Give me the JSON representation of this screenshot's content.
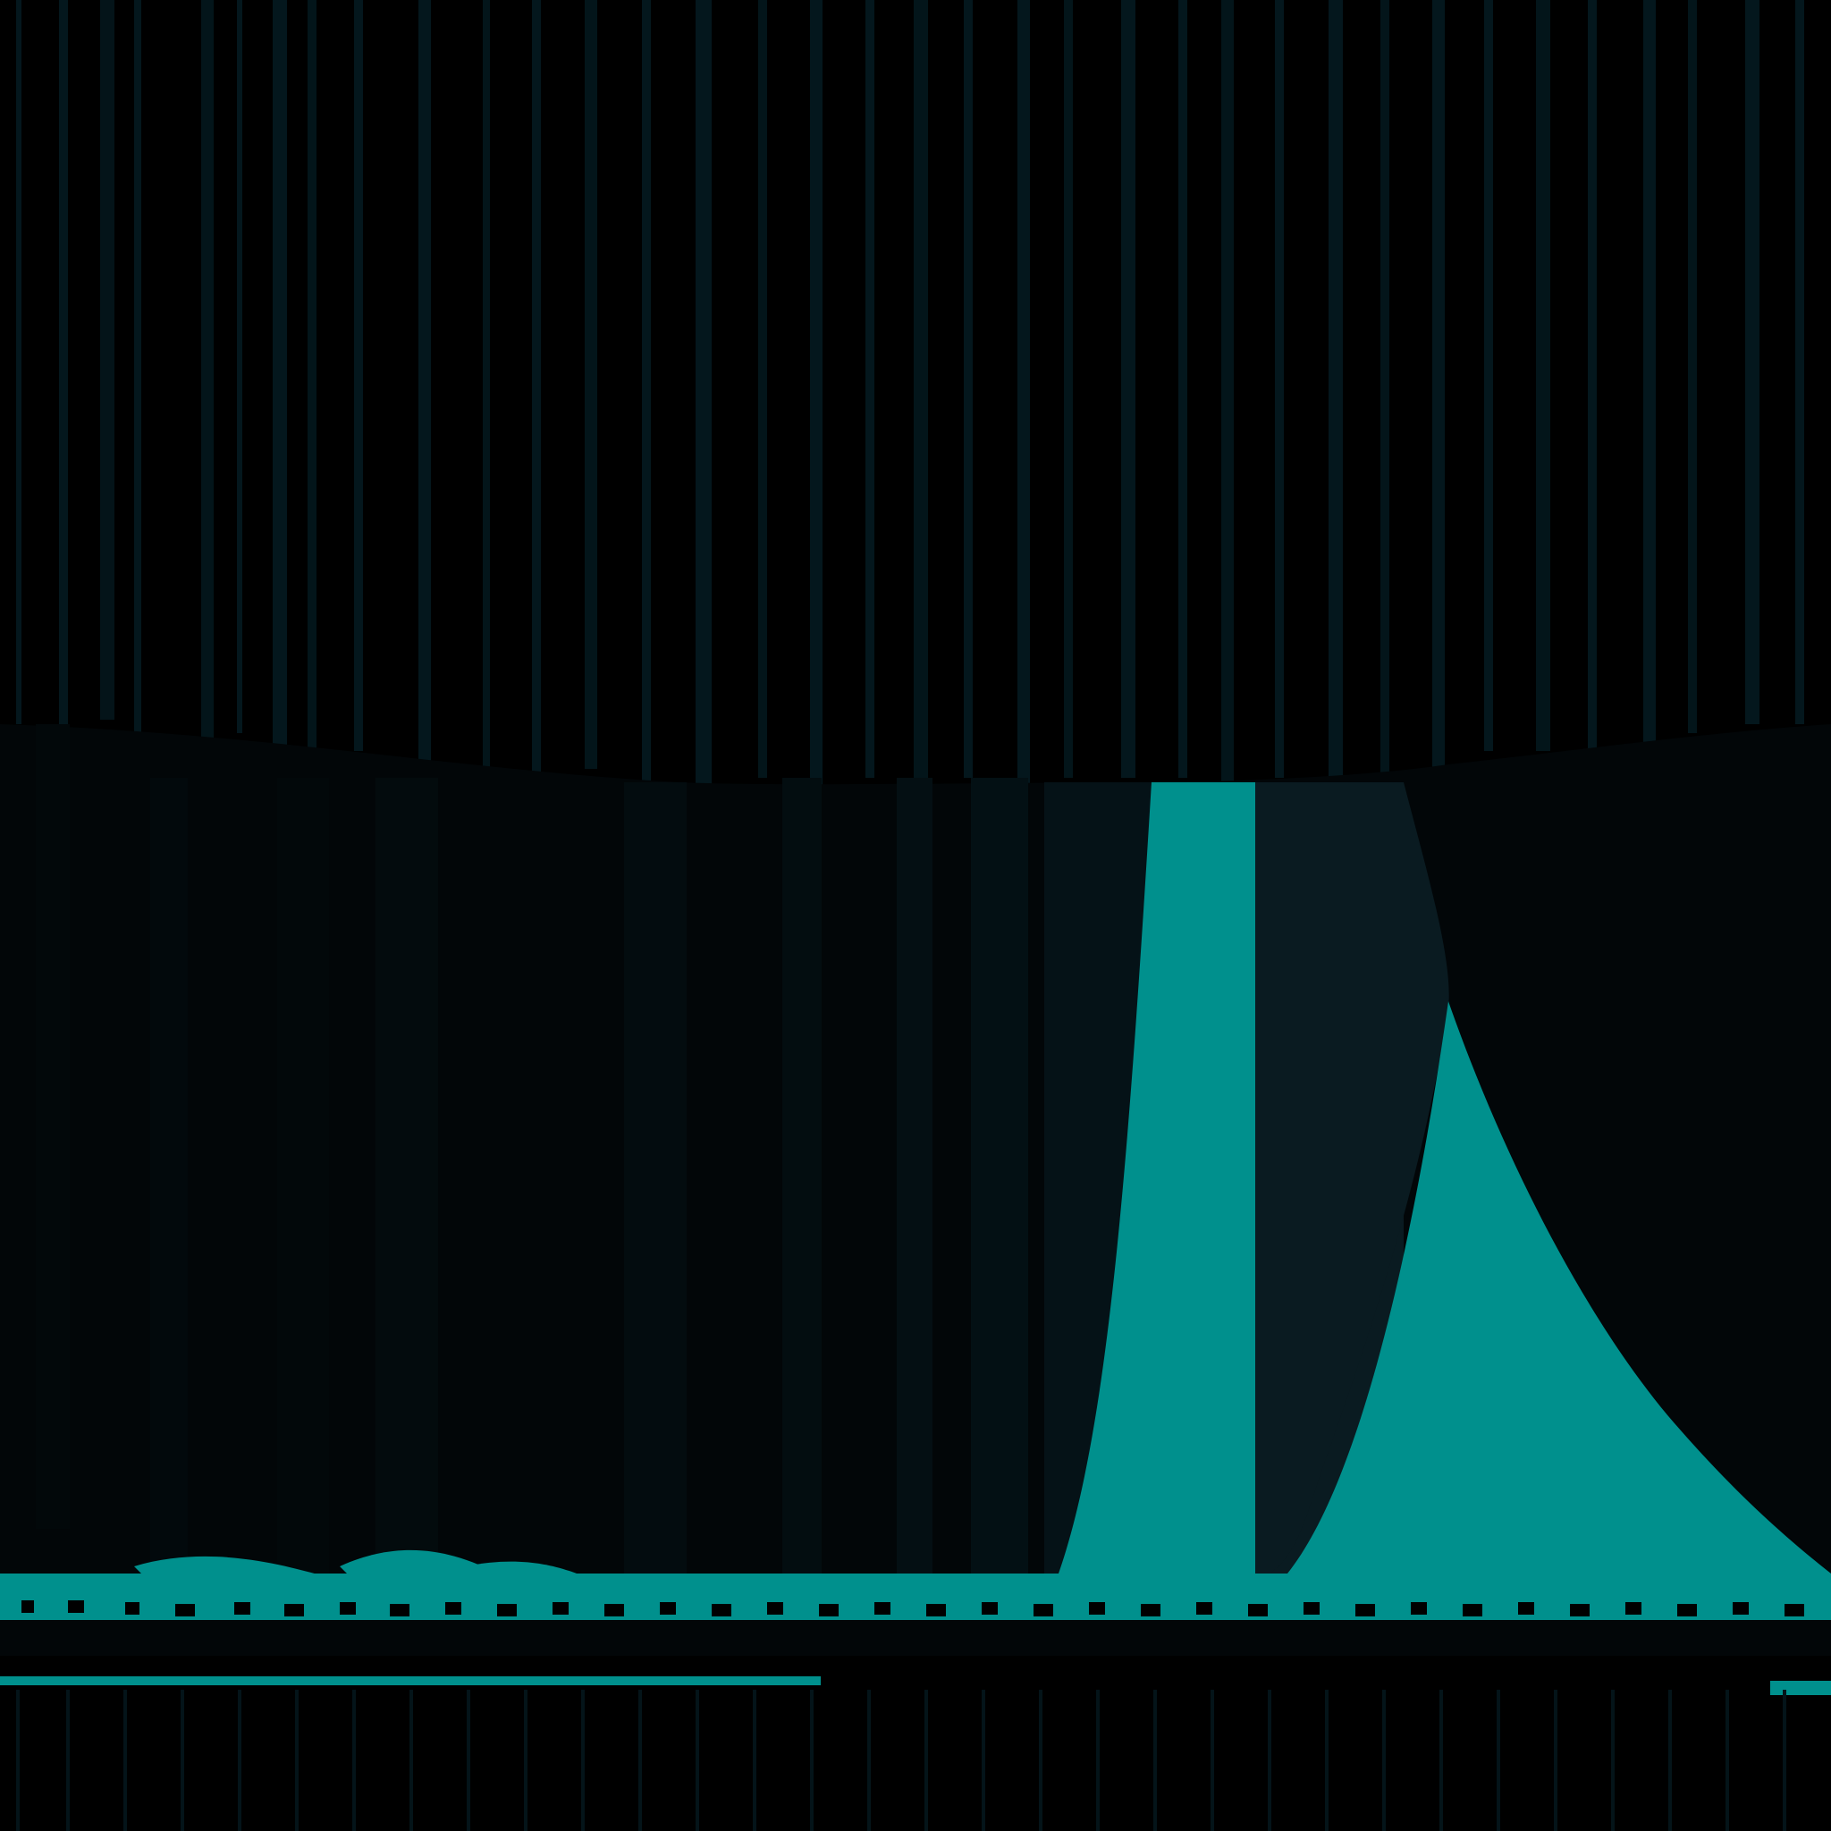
{
  "image": {
    "description_free": true
  },
  "colors": {
    "background": "#000000",
    "dark_teal": "#031014",
    "mid_dark": "#0a1b21",
    "teal_accent": "#00908d",
    "stripe_dark": "#04171d",
    "stripe_faint": "#07242a"
  }
}
